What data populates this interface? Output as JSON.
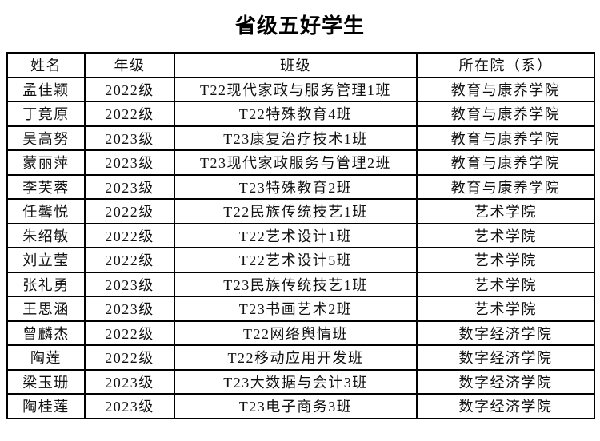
{
  "title": "省级五好学生",
  "colors": {
    "border": "#000000",
    "text": "#111111",
    "background": "#ffffff",
    "title_text": "#000000"
  },
  "table": {
    "headers": [
      "姓名",
      "年级",
      "班级",
      "所在院（系）"
    ],
    "rows": [
      [
        "孟佳颖",
        "2022级",
        "T22现代家政与服务管理1班",
        "教育与康养学院"
      ],
      [
        "丁竟原",
        "2022级",
        "T22特殊教育4班",
        "教育与康养学院"
      ],
      [
        "吴高努",
        "2023级",
        "T23康复治疗技术1班",
        "教育与康养学院"
      ],
      [
        "蒙丽萍",
        "2023级",
        "T23现代家政服务与管理2班",
        "教育与康养学院"
      ],
      [
        "李芙蓉",
        "2023级",
        "T23特殊教育2班",
        "教育与康养学院"
      ],
      [
        "任馨悦",
        "2022级",
        "T22民族传统技艺1班",
        "艺术学院"
      ],
      [
        "朱绍敏",
        "2022级",
        "T22艺术设计1班",
        "艺术学院"
      ],
      [
        "刘立莹",
        "2022级",
        "T22艺术设计5班",
        "艺术学院"
      ],
      [
        "张礼勇",
        "2023级",
        "T23民族传统技艺1班",
        "艺术学院"
      ],
      [
        "王思涵",
        "2023级",
        "T23书画艺术2班",
        "艺术学院"
      ],
      [
        "曾麟杰",
        "2022级",
        "T22网络舆情班",
        "数字经济学院"
      ],
      [
        "陶莲",
        "2022级",
        "T22移动应用开发班",
        "数字经济学院"
      ],
      [
        "梁玉珊",
        "2023级",
        "T23大数据与会计3班",
        "数字经济学院"
      ],
      [
        "陶桂莲",
        "2023级",
        "T23电子商务3班",
        "数字经济学院"
      ]
    ]
  }
}
